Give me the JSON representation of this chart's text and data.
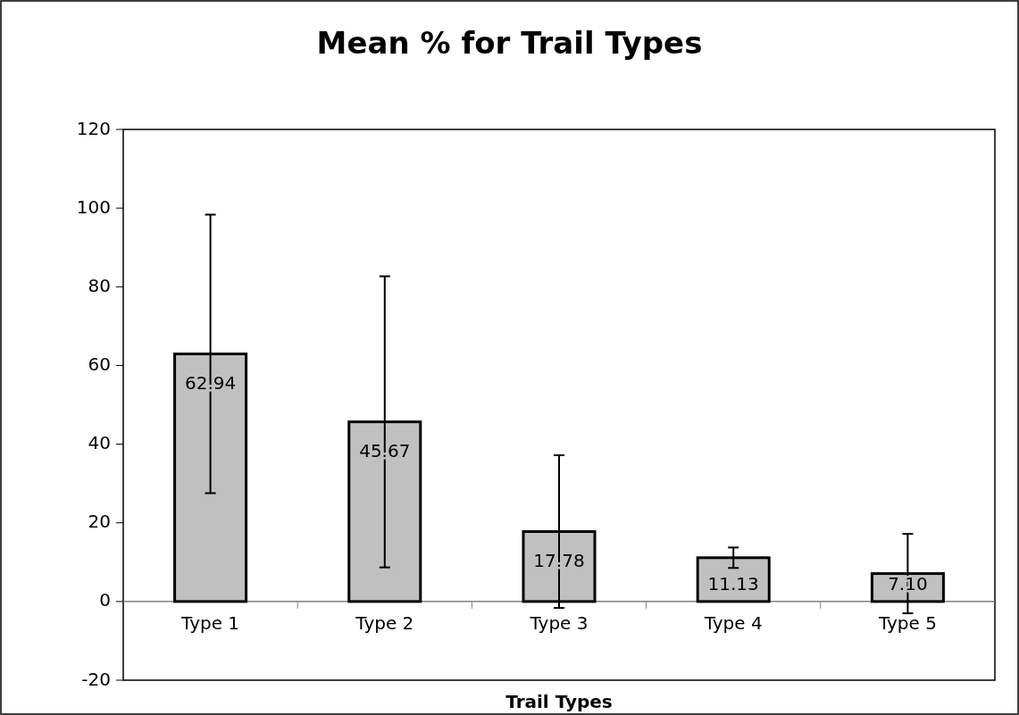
{
  "chart_data": {
    "type": "bar",
    "title": "Mean % for Trail Types",
    "xlabel": "Trail Types",
    "categories": [
      "Type 1",
      "Type 2",
      "Type 3",
      "Type 4",
      "Type 5"
    ],
    "values": [
      62.94,
      45.67,
      17.78,
      11.13,
      7.1
    ],
    "value_labels": [
      "62.94",
      "45.67",
      "17.78",
      "11.13",
      "7.10"
    ],
    "errors": [
      35.4,
      37.0,
      19.4,
      2.6,
      10.1
    ],
    "color": "#c0c0c0",
    "ylim": [
      -20,
      120
    ],
    "yticks": [
      -20,
      0,
      20,
      40,
      60,
      80,
      100,
      120
    ],
    "grid": false
  }
}
